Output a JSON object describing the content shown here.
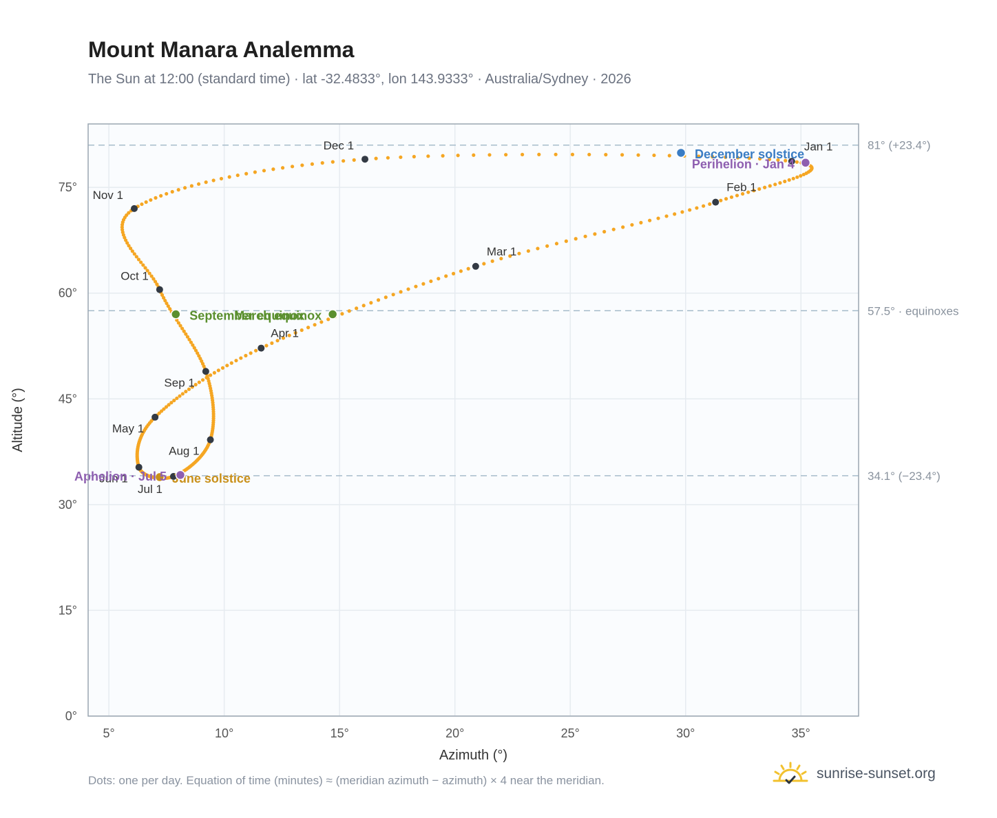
{
  "title": "Mount Manara Analemma",
  "subtitle": "The Sun at 12:00 (standard time) · lat -32.4833°, lon 143.9333° · Australia/Sydney · 2026",
  "footnote": "Dots: one per day. Equation of time (minutes) ≈ (meridian azimuth − azimuth) × 4 near the meridian.",
  "brand": {
    "text": "sunrise-sunset.org",
    "icon": "sun-logo-icon"
  },
  "colors": {
    "curve": "#f5a623",
    "month_marker": "#333a44",
    "solstice_december": "#3b7dc4",
    "solstice_june": "#c9901a",
    "equinox": "#5a8f2e",
    "apsis": "#8e5fb0",
    "reference_line": "#a7bccb",
    "plot_background": "#fafcfe",
    "grid": "#e6ebf0",
    "frame": "#9aa5b1"
  },
  "chart_data": {
    "type": "scatter",
    "title": "Mount Manara Analemma",
    "xlabel": "Azimuth (°)",
    "ylabel": "Altitude (°)",
    "xlim": [
      4.1,
      37.5
    ],
    "ylim": [
      0,
      84
    ],
    "xticks": [
      5,
      10,
      15,
      20,
      25,
      30,
      35
    ],
    "yticks": [
      0,
      15,
      30,
      45,
      60,
      75
    ],
    "x_tick_labels": [
      "5°",
      "10°",
      "15°",
      "20°",
      "25°",
      "30°",
      "35°"
    ],
    "y_tick_labels": [
      "0°",
      "15°",
      "30°",
      "45°",
      "60°",
      "75°"
    ],
    "grid": true,
    "marker": "one dot per day",
    "reference_lines": [
      {
        "altitude": 81.0,
        "label": "81° (+23.4°)"
      },
      {
        "altitude": 57.5,
        "label": "57.5° · equinoxes"
      },
      {
        "altitude": 34.1,
        "label": "34.1° (−23.4°)"
      }
    ],
    "month_points": [
      {
        "label": "Jan 1",
        "azimuth": 34.6,
        "altitude": 78.7
      },
      {
        "label": "Feb 1",
        "azimuth": 31.3,
        "altitude": 72.9
      },
      {
        "label": "Mar 1",
        "azimuth": 20.9,
        "altitude": 63.8
      },
      {
        "label": "Apr 1",
        "azimuth": 11.6,
        "altitude": 52.2
      },
      {
        "label": "May 1",
        "azimuth": 7.0,
        "altitude": 42.4
      },
      {
        "label": "Jun 1",
        "azimuth": 6.3,
        "altitude": 35.3
      },
      {
        "label": "Jul 1",
        "azimuth": 7.8,
        "altitude": 34.0
      },
      {
        "label": "Aug 1",
        "azimuth": 9.4,
        "altitude": 39.2
      },
      {
        "label": "Sep 1",
        "azimuth": 9.2,
        "altitude": 48.9
      },
      {
        "label": "Oct 1",
        "azimuth": 7.2,
        "altitude": 60.5
      },
      {
        "label": "Nov 1",
        "azimuth": 6.1,
        "altitude": 72.0
      },
      {
        "label": "Dec 1",
        "azimuth": 16.1,
        "altitude": 79.0
      }
    ],
    "events": [
      {
        "label": "December solstice",
        "azimuth": 29.8,
        "altitude": 79.9,
        "color": "#3b7dc4"
      },
      {
        "label": "Perihelion · Jan 4",
        "azimuth": 35.2,
        "altitude": 78.5,
        "color": "#8e5fb0"
      },
      {
        "label": "March equinox",
        "azimuth": 14.7,
        "altitude": 57.0,
        "color": "#5a8f2e"
      },
      {
        "label": "September equinox",
        "azimuth": 7.9,
        "altitude": 57.0,
        "color": "#5a8f2e"
      },
      {
        "label": "June solstice",
        "azimuth": 7.2,
        "altitude": 33.9,
        "color": "#c9901a"
      },
      {
        "label": "Aphelion · Jul 5",
        "azimuth": 8.1,
        "altitude": 34.2,
        "color": "#8e5fb0"
      }
    ]
  }
}
